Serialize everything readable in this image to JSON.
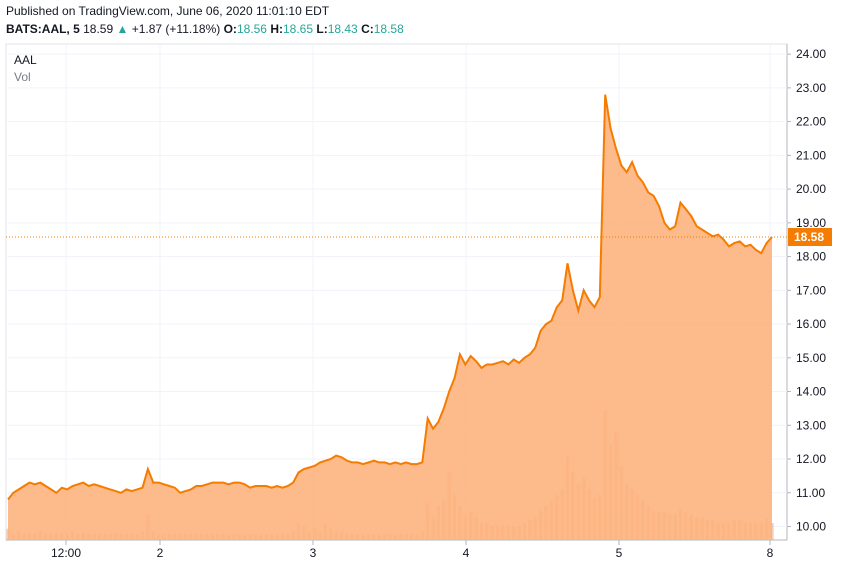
{
  "header": {
    "published": "Published on TradingView.com, June 06, 2020 11:01:10 EDT",
    "symbol": "BATS:AAL, 5",
    "last": "18.59",
    "change": "+1.87 (+11.18%)",
    "open_label": "O:",
    "open": "18.56",
    "high_label": "H:",
    "high": "18.65",
    "low_label": "L:",
    "low": "18.43",
    "close_label": "C:",
    "close": "18.58"
  },
  "legend": {
    "name": "AAL",
    "volume": "Vol"
  },
  "colors": {
    "line": "#f57c00",
    "fill": "#fdb27d",
    "volume": "#e8a27a",
    "up": "#26a69a",
    "tag": "#f57c00"
  },
  "chart_data": {
    "type": "area",
    "y_range": [
      9.6,
      24.3
    ],
    "y_ticks": [
      "24.00",
      "23.00",
      "22.00",
      "21.00",
      "20.00",
      "19.00",
      "18.00",
      "17.00",
      "16.00",
      "15.00",
      "14.00",
      "13.00",
      "12.00",
      "11.00",
      "10.00"
    ],
    "x_ticks": [
      "12:00",
      "2",
      "3",
      "4",
      "5",
      "8"
    ],
    "last_price_label": "18.58",
    "last_price": 18.58,
    "series": [
      {
        "values": [
          10.8,
          11.0,
          11.1,
          11.2,
          11.3,
          11.25,
          11.3,
          11.2,
          11.1,
          11.0,
          11.15,
          11.1,
          11.2,
          11.25,
          11.3,
          11.2,
          11.25,
          11.2,
          11.15,
          11.1,
          11.05,
          11.0,
          11.1,
          11.05,
          11.1,
          11.15,
          11.7,
          11.3,
          11.3,
          11.25,
          11.2,
          11.15,
          11.0,
          11.05,
          11.1,
          11.2,
          11.2,
          11.25,
          11.3,
          11.3,
          11.3,
          11.25,
          11.3,
          11.3,
          11.25,
          11.15,
          11.2,
          11.2,
          11.2,
          11.15,
          11.2,
          11.15,
          11.2,
          11.3,
          11.6,
          11.7,
          11.75,
          11.8,
          11.9,
          11.95,
          12.0,
          12.1,
          12.05,
          11.95,
          11.9,
          11.9,
          11.85,
          11.9,
          11.95,
          11.9,
          11.9,
          11.85,
          11.9,
          11.85,
          11.9,
          11.85,
          11.85,
          11.9,
          13.2,
          12.9,
          13.1,
          13.5,
          14.0,
          14.4,
          15.1,
          14.8,
          15.05,
          14.9,
          14.7,
          14.8,
          14.8,
          14.85,
          14.9,
          14.8,
          14.95,
          14.85,
          15.0,
          15.1,
          15.3,
          15.8,
          16.0,
          16.1,
          16.5,
          16.7,
          17.8,
          17.0,
          16.4,
          17.0,
          16.7,
          16.5,
          16.8,
          22.8,
          21.8,
          21.2,
          20.7,
          20.5,
          20.8,
          20.4,
          20.2,
          19.9,
          19.8,
          19.5,
          19.0,
          18.8,
          18.9,
          19.6,
          19.4,
          19.2,
          18.9,
          18.8,
          18.7,
          18.6,
          18.65,
          18.5,
          18.3,
          18.4,
          18.45,
          18.3,
          18.35,
          18.2,
          18.1,
          18.4,
          18.58
        ]
      },
      {
        "name": "Vol",
        "values": [
          0.4,
          0.2,
          0.3,
          0.2,
          0.25,
          0.2,
          0.3,
          0.2,
          0.2,
          0.25,
          0.2,
          0.2,
          0.3,
          0.2,
          0.25,
          0.2,
          0.2,
          0.2,
          0.2,
          0.2,
          0.25,
          0.2,
          0.2,
          0.2,
          0.2,
          0.3,
          0.9,
          0.3,
          0.2,
          0.2,
          0.2,
          0.2,
          0.2,
          0.2,
          0.2,
          0.2,
          0.2,
          0.2,
          0.2,
          0.2,
          0.2,
          0.2,
          0.2,
          0.2,
          0.2,
          0.2,
          0.2,
          0.2,
          0.2,
          0.2,
          0.2,
          0.2,
          0.2,
          0.3,
          0.6,
          0.5,
          0.3,
          0.4,
          0.3,
          0.6,
          0.4,
          0.3,
          0.3,
          0.2,
          0.2,
          0.2,
          0.2,
          0.2,
          0.2,
          0.2,
          0.2,
          0.2,
          0.2,
          0.2,
          0.2,
          0.2,
          0.2,
          0.3,
          1.3,
          0.8,
          1.2,
          1.4,
          2.4,
          1.6,
          1.2,
          0.9,
          1.0,
          0.8,
          0.6,
          0.6,
          0.5,
          0.5,
          0.5,
          0.5,
          0.5,
          0.5,
          0.6,
          0.7,
          0.8,
          1.1,
          1.2,
          1.4,
          1.6,
          1.8,
          3.0,
          2.4,
          2.0,
          2.2,
          1.8,
          1.5,
          1.6,
          4.6,
          3.4,
          3.8,
          2.6,
          2.0,
          1.8,
          1.6,
          1.4,
          1.2,
          1.0,
          1.0,
          1.0,
          0.9,
          0.9,
          1.1,
          1.0,
          0.9,
          0.8,
          0.8,
          0.7,
          0.7,
          0.6,
          0.6,
          0.6,
          0.7,
          0.7,
          0.6,
          0.6,
          0.6,
          0.6,
          0.8,
          0.6
        ]
      }
    ]
  }
}
